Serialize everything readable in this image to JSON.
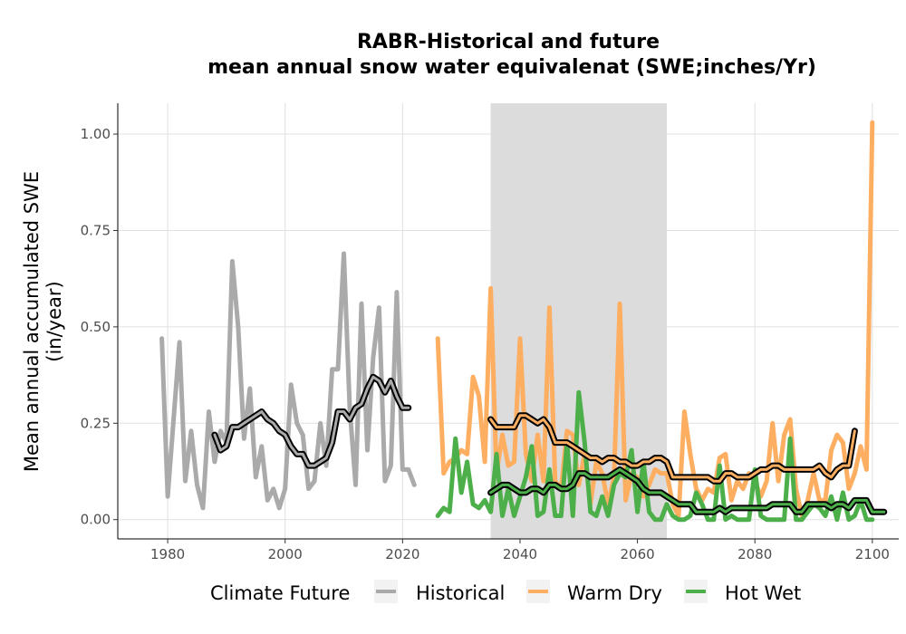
{
  "chart_data": {
    "type": "line",
    "title_line1": "RABR-Historical and future",
    "title_line2": "mean annual snow water equivalenat (SWE;inches/Yr)",
    "ylabel_line1": "Mean annual accumulated SWE",
    "ylabel_line2": "(in/year)",
    "xlabel": "",
    "xlim": [
      1971.5,
      2104.5
    ],
    "ylim": [
      -0.05,
      1.08
    ],
    "x_ticks": [
      1980,
      2000,
      2020,
      2040,
      2060,
      2080,
      2100
    ],
    "x_tick_labels": [
      "1980",
      "2000",
      "2020",
      "2040",
      "2060",
      "2080",
      "2100"
    ],
    "y_ticks": [
      0,
      0.25,
      0.5,
      0.75,
      1.0
    ],
    "y_tick_labels": [
      "0.00",
      "0.25",
      "0.50",
      "0.75",
      "1.00"
    ],
    "grid": true,
    "shaded_period": [
      2035,
      2065
    ],
    "legend": {
      "title": "Climate Future",
      "position": "bottom",
      "entries": [
        "Historical",
        "Warm Dry",
        "Hot Wet"
      ]
    },
    "series": [
      {
        "name": "Historical",
        "color": "#aaaaaa",
        "x_start": 1979,
        "values": [
          0.47,
          0.06,
          0.26,
          0.46,
          0.1,
          0.23,
          0.09,
          0.03,
          0.28,
          0.15,
          0.23,
          0.2,
          0.67,
          0.5,
          0.21,
          0.34,
          0.11,
          0.19,
          0.05,
          0.08,
          0.03,
          0.08,
          0.35,
          0.25,
          0.22,
          0.08,
          0.1,
          0.25,
          0.14,
          0.39,
          0.39,
          0.69,
          0.29,
          0.09,
          0.56,
          0.18,
          0.42,
          0.55,
          0.1,
          0.14,
          0.59,
          0.13,
          0.13,
          0.09
        ],
        "smooth_x_start": 1988,
        "smooth_values": [
          0.22,
          0.18,
          0.19,
          0.24,
          0.24,
          0.25,
          0.26,
          0.27,
          0.28,
          0.26,
          0.25,
          0.23,
          0.22,
          0.19,
          0.17,
          0.17,
          0.14,
          0.14,
          0.15,
          0.16,
          0.2,
          0.28,
          0.28,
          0.26,
          0.29,
          0.3,
          0.34,
          0.37,
          0.36,
          0.33,
          0.36,
          0.32,
          0.29,
          0.29
        ]
      },
      {
        "name": "Warm Dry",
        "color": "#fdae61",
        "x_start": 2026,
        "values": [
          0.47,
          0.12,
          0.15,
          0.16,
          0.18,
          0.17,
          0.37,
          0.32,
          0.15,
          0.6,
          0.12,
          0.22,
          0.14,
          0.15,
          0.47,
          0.17,
          0.1,
          0.22,
          0.1,
          0.55,
          0.1,
          0.08,
          0.23,
          0.22,
          0.09,
          0.17,
          0.04,
          0.15,
          0.12,
          0.04,
          0.11,
          0.56,
          0.05,
          0.12,
          0.11,
          0.06,
          0.09,
          0.13,
          0.12,
          0.12,
          0.04,
          0.01,
          0.28,
          0.17,
          0.08,
          0.05,
          0.08,
          0.07,
          0.16,
          0.17,
          0.05,
          0.1,
          0.08,
          0.12,
          0.1,
          0.06,
          0.1,
          0.25,
          0.1,
          0.22,
          0.26,
          0.08,
          0.01,
          0.05,
          0.12,
          0.05,
          0.05,
          0.18,
          0.22,
          0.2,
          0.08,
          0.12,
          0.19,
          0.13,
          1.03
        ],
        "smooth_x_start": 2035,
        "smooth_values": [
          0.26,
          0.24,
          0.24,
          0.24,
          0.24,
          0.27,
          0.27,
          0.26,
          0.25,
          0.26,
          0.24,
          0.2,
          0.2,
          0.2,
          0.19,
          0.18,
          0.17,
          0.16,
          0.16,
          0.15,
          0.16,
          0.16,
          0.15,
          0.15,
          0.14,
          0.14,
          0.15,
          0.15,
          0.16,
          0.16,
          0.15,
          0.11,
          0.11,
          0.11,
          0.11,
          0.11,
          0.11,
          0.11,
          0.1,
          0.1,
          0.12,
          0.12,
          0.11,
          0.11,
          0.11,
          0.12,
          0.13,
          0.13,
          0.14,
          0.14,
          0.13,
          0.13,
          0.13,
          0.13,
          0.13,
          0.13,
          0.14,
          0.12,
          0.11,
          0.13,
          0.14,
          0.14,
          0.23
        ]
      },
      {
        "name": "Hot Wet",
        "color": "#4daf4a",
        "x_start": 2026,
        "values": [
          0.01,
          0.03,
          0.02,
          0.21,
          0.07,
          0.15,
          0.04,
          0.03,
          0.05,
          0.02,
          0.17,
          0.01,
          0.08,
          0.01,
          0.06,
          0.11,
          0.19,
          0.01,
          0.02,
          0.13,
          0.01,
          0.01,
          0.2,
          0.01,
          0.33,
          0.2,
          0.02,
          0.01,
          0.06,
          0.01,
          0.09,
          0.12,
          0.11,
          0.18,
          0.02,
          0.15,
          0.02,
          0.0,
          0.0,
          0.04,
          0.01,
          0.0,
          0.0,
          0.01,
          0.07,
          0.04,
          0.0,
          0.0,
          0.14,
          0.0,
          0.01,
          0.0,
          0.0,
          0.0,
          0.13,
          0.01,
          0.0,
          0.0,
          0.0,
          0.0,
          0.21,
          0.0,
          0.0,
          0.02,
          0.04,
          0.03,
          0.01,
          0.06,
          0.0,
          0.07,
          0.0,
          0.01,
          0.05,
          0.0,
          0.0
        ],
        "smooth_x_start": 2035,
        "smooth_values": [
          0.07,
          0.08,
          0.09,
          0.09,
          0.08,
          0.07,
          0.07,
          0.08,
          0.08,
          0.07,
          0.09,
          0.09,
          0.08,
          0.08,
          0.09,
          0.12,
          0.12,
          0.11,
          0.11,
          0.11,
          0.11,
          0.12,
          0.13,
          0.12,
          0.11,
          0.1,
          0.08,
          0.07,
          0.07,
          0.07,
          0.06,
          0.05,
          0.04,
          0.04,
          0.04,
          0.02,
          0.02,
          0.02,
          0.02,
          0.03,
          0.02,
          0.03,
          0.03,
          0.03,
          0.03,
          0.03,
          0.03,
          0.03,
          0.04,
          0.04,
          0.04,
          0.04,
          0.02,
          0.02,
          0.04,
          0.04,
          0.04,
          0.04,
          0.03,
          0.04,
          0.04,
          0.03,
          0.05,
          0.05,
          0.05,
          0.02,
          0.02,
          0.02
        ]
      }
    ]
  }
}
